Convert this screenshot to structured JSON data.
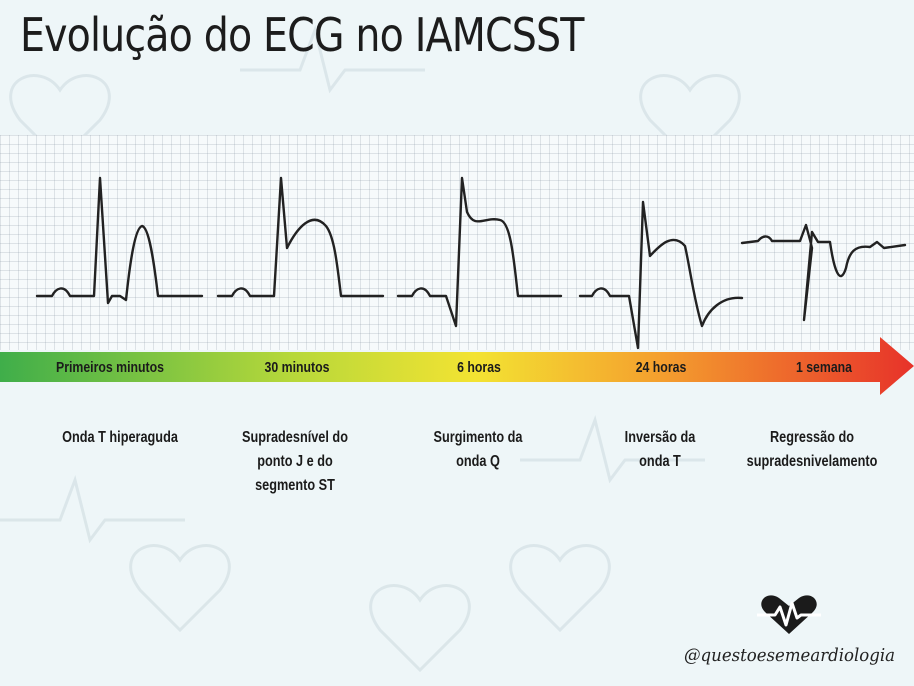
{
  "title": "Evolução do ECG no IAMCSST",
  "stages": [
    {
      "time": "Primeiros minutos",
      "description": [
        "Onda T hiperaguda"
      ]
    },
    {
      "time": "30 minutos",
      "description": [
        "Supradesnível do",
        "ponto J e do",
        "segmento ST"
      ]
    },
    {
      "time": "6 horas",
      "description": [
        "Surgimento da",
        "onda Q"
      ]
    },
    {
      "time": "24 horas",
      "description": [
        "Inversão da",
        "onda T"
      ]
    },
    {
      "time": "1 semana",
      "description": [
        "Regressão do",
        "supradesnivelamento"
      ]
    }
  ],
  "handle": "@questoesemeardiologia",
  "colors": {
    "trace": "#222222",
    "arrow_start": "#3fae4a",
    "arrow_mid": "#f3e332",
    "arrow_end": "#e7322a",
    "logo": "#1b1b1b"
  },
  "icons": {
    "logo": "heart-ecg-icon"
  }
}
